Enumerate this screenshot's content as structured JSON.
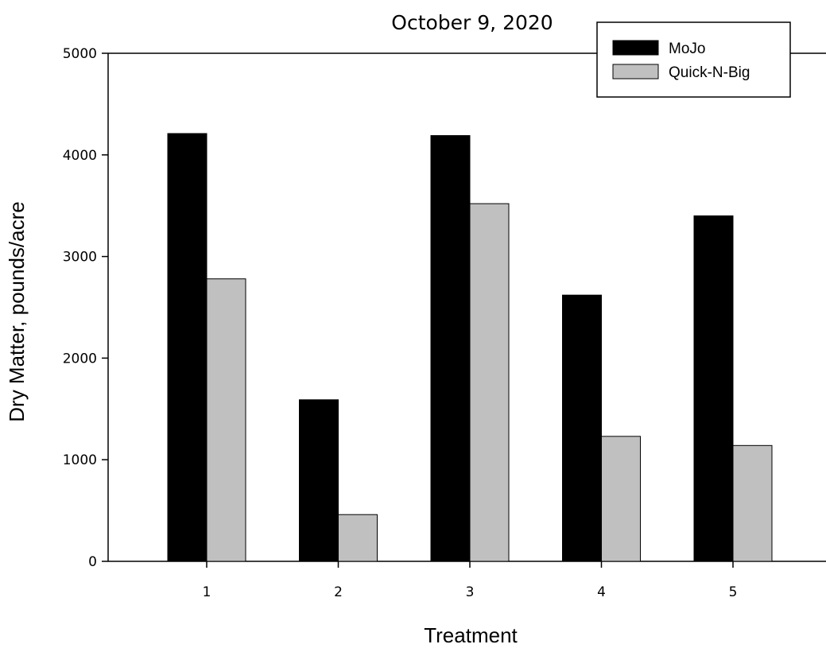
{
  "chart_data": {
    "type": "bar",
    "title": "October 9, 2020",
    "xlabel": "Treatment",
    "ylabel": "Dry Matter, pounds/acre",
    "categories": [
      "1",
      "2",
      "3",
      "4",
      "5"
    ],
    "series": [
      {
        "name": "MoJo",
        "color": "#000000",
        "values": [
          4210,
          1590,
          4190,
          2620,
          3400
        ]
      },
      {
        "name": "Quick-N-Big",
        "color": "#c0c0c0",
        "values": [
          2780,
          460,
          3520,
          1230,
          1140
        ]
      }
    ],
    "ylim": [
      0,
      5000
    ],
    "yticks": [
      0,
      1000,
      2000,
      3000,
      4000,
      5000
    ],
    "grid": false,
    "legend_position": "top-right"
  }
}
